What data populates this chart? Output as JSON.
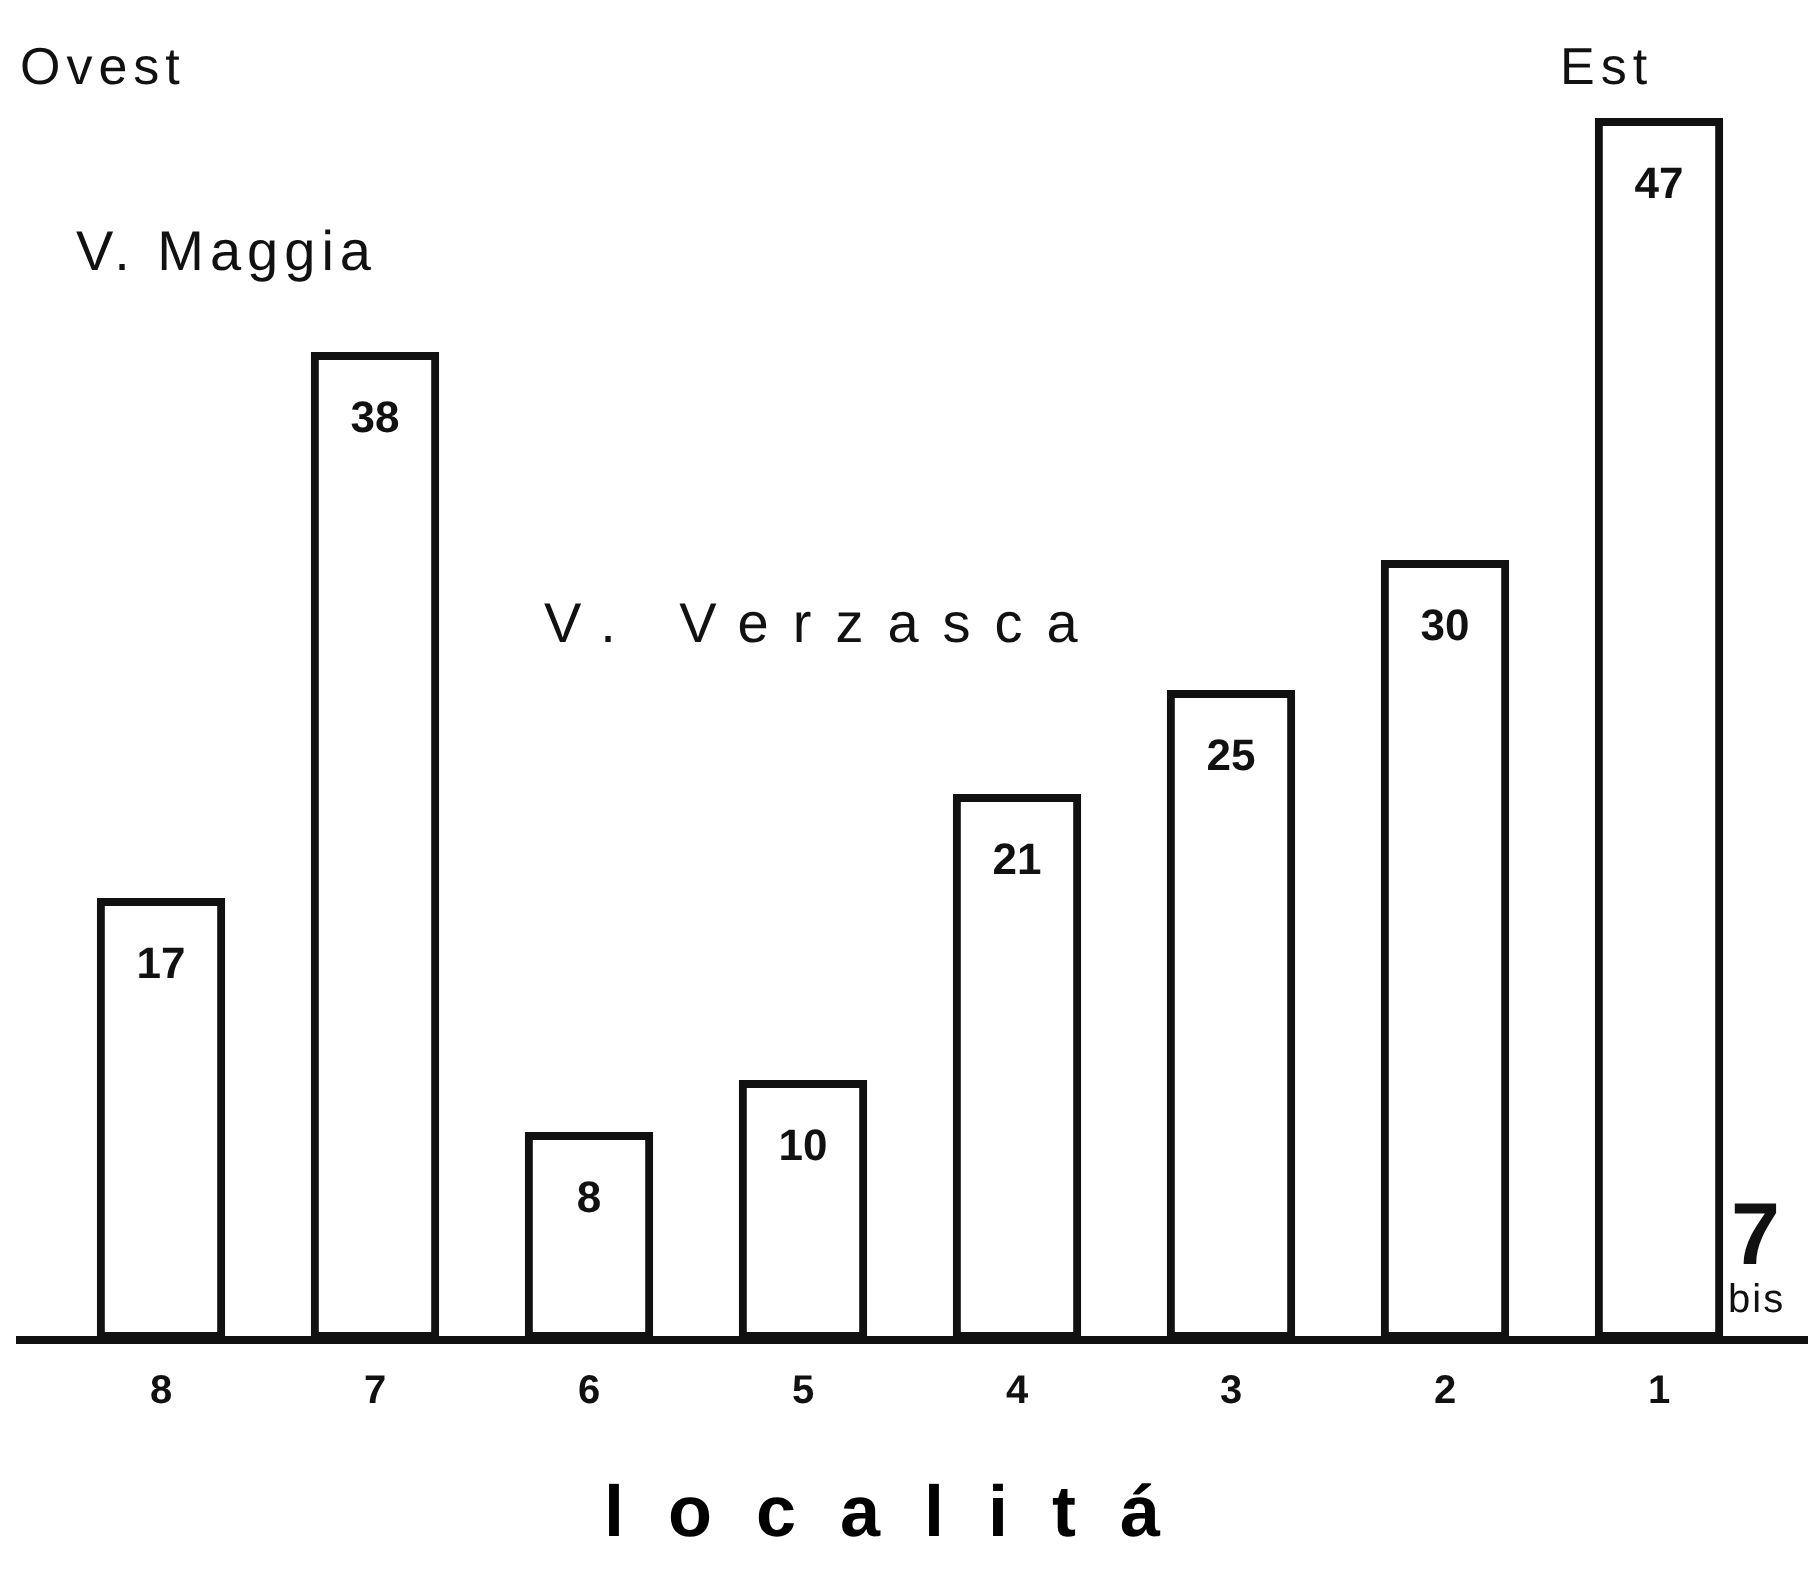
{
  "chart_data": {
    "type": "bar",
    "xlabel": "localitá",
    "categories": [
      "8",
      "7",
      "6",
      "5",
      "4",
      "3",
      "2",
      "1"
    ],
    "values": [
      17,
      38,
      8,
      10,
      21,
      25,
      30,
      47
    ],
    "color": "#111111",
    "data_labels": true,
    "grid": false,
    "legend": false,
    "tick_labels": "x",
    "annotations": [
      "Ovest",
      "Est",
      "V. Maggia",
      "V. Verzasca",
      "7 bis"
    ]
  }
}
